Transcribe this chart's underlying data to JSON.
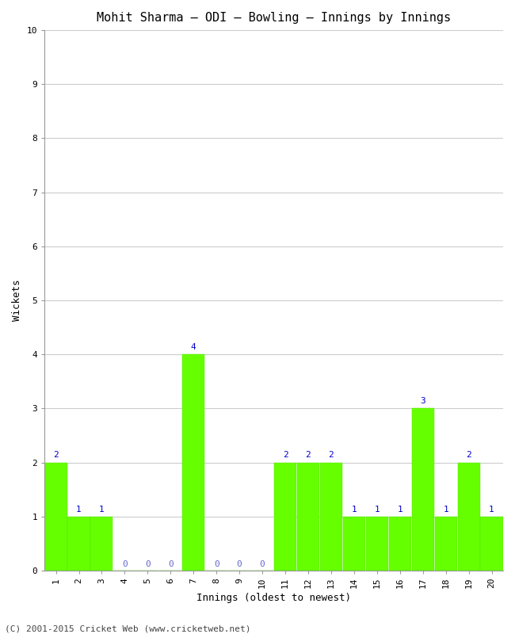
{
  "title": "Mohit Sharma – ODI – Bowling – Innings by Innings",
  "xlabel": "Innings (oldest to newest)",
  "ylabel": "Wickets",
  "innings": [
    1,
    2,
    3,
    4,
    5,
    6,
    7,
    8,
    9,
    10,
    11,
    12,
    13,
    14,
    15,
    16,
    17,
    18,
    19,
    20
  ],
  "wickets": [
    2,
    1,
    1,
    0,
    0,
    0,
    4,
    0,
    0,
    0,
    2,
    2,
    2,
    1,
    1,
    1,
    3,
    1,
    2,
    1
  ],
  "bar_color": "#66ff00",
  "bar_edge_color": "#55dd00",
  "label_color_nonzero": "#0000cc",
  "label_color_zero": "#6666cc",
  "ylim": [
    0,
    10
  ],
  "yticks": [
    0,
    1,
    2,
    3,
    4,
    5,
    6,
    7,
    8,
    9,
    10
  ],
  "background_color": "#ffffff",
  "grid_color": "#cccccc",
  "footer": "(C) 2001-2015 Cricket Web (www.cricketweb.net)",
  "title_fontsize": 11,
  "axis_label_fontsize": 9,
  "tick_fontsize": 8,
  "bar_label_fontsize": 8,
  "footer_fontsize": 8,
  "figwidth": 6.5,
  "figheight": 8.0,
  "dpi": 100
}
